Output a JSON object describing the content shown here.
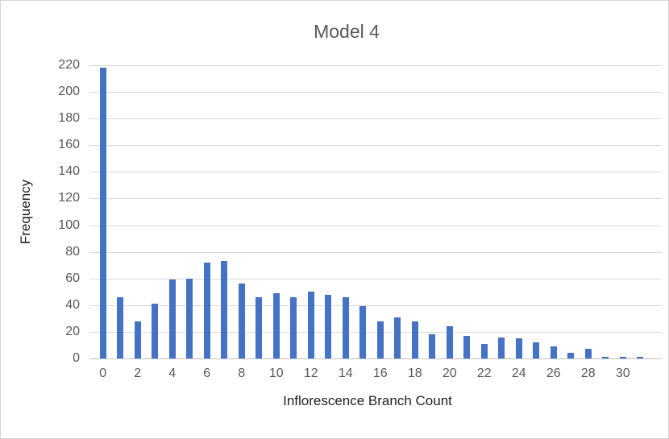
{
  "chart_data": {
    "type": "bar",
    "title": "Model 4",
    "xlabel": "Inflorescence Branch Count",
    "ylabel": "Frequency",
    "categories": [
      0,
      1,
      2,
      3,
      4,
      5,
      6,
      7,
      8,
      9,
      10,
      11,
      12,
      13,
      14,
      15,
      16,
      17,
      18,
      19,
      20,
      21,
      22,
      23,
      24,
      25,
      26,
      27,
      28,
      29,
      30,
      31
    ],
    "values": [
      218,
      46,
      28,
      41,
      59,
      60,
      72,
      73,
      56,
      46,
      49,
      46,
      50,
      48,
      46,
      39,
      28,
      31,
      28,
      18,
      24,
      17,
      11,
      16,
      15,
      12,
      9,
      4,
      7,
      1,
      1,
      1
    ],
    "ylim": [
      0,
      220
    ],
    "y_tick_labels": [
      "0",
      "20",
      "40",
      "60",
      "80",
      "100",
      "120",
      "140",
      "160",
      "180",
      "200",
      "220"
    ],
    "x_tick_labels": [
      "0",
      "2",
      "4",
      "6",
      "8",
      "10",
      "12",
      "14",
      "16",
      "18",
      "20",
      "22",
      "24",
      "26",
      "28",
      "30"
    ],
    "grid": true,
    "legend": "none",
    "bar_color": "#4472c4",
    "gridline_color": "#d9d9d9",
    "axis_line_color": "#bfbfbf",
    "tick_label_color": "#595959",
    "title_color": "#595959",
    "axis_title_color": "#1f1f1f"
  }
}
